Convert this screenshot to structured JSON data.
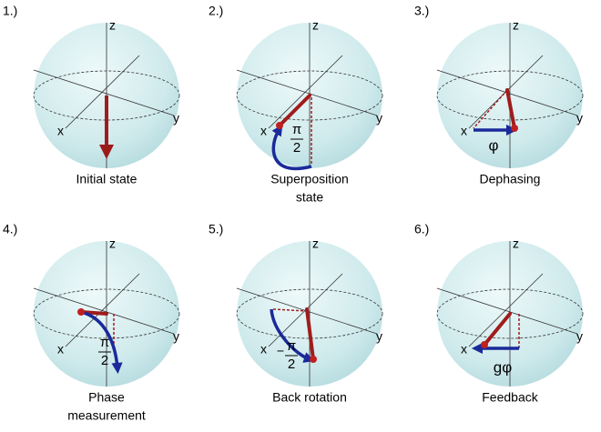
{
  "panels": [
    {
      "number": "1.)",
      "caption": [
        "Initial state"
      ],
      "axes": {
        "z": "z",
        "x": "x",
        "y": "y"
      }
    },
    {
      "number": "2.)",
      "caption": [
        "Superposition",
        "state"
      ],
      "axes": {
        "z": "z",
        "x": "x",
        "y": "y"
      },
      "annotation": {
        "numerator": "π",
        "denominator": "2"
      }
    },
    {
      "number": "3.)",
      "caption": [
        "Dephasing"
      ],
      "axes": {
        "z": "z",
        "x": "x",
        "y": "y"
      },
      "annotation": {
        "text": "φ"
      }
    },
    {
      "number": "4.)",
      "caption": [
        "Phase",
        "measurement"
      ],
      "axes": {
        "z": "z",
        "x": "x",
        "y": "y"
      },
      "annotation": {
        "numerator": "π",
        "denominator": "2"
      }
    },
    {
      "number": "5.)",
      "caption": [
        "Back rotation"
      ],
      "axes": {
        "z": "z",
        "x": "x",
        "y": "y"
      },
      "annotation": {
        "sign": "−",
        "numerator": "π",
        "denominator": "2"
      }
    },
    {
      "number": "6.)",
      "caption": [
        "Feedback"
      ],
      "axes": {
        "z": "z",
        "x": "x",
        "y": "y"
      },
      "annotation": {
        "text": "gφ"
      }
    }
  ]
}
